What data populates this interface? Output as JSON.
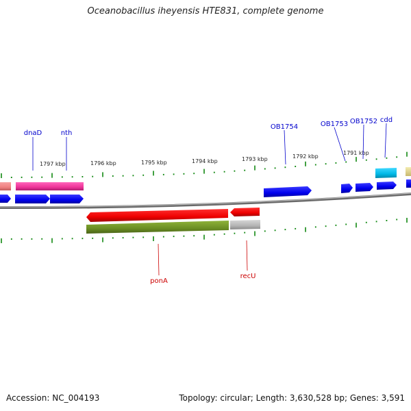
{
  "title": "Oceanobacillus iheyensis HTE831, complete genome",
  "footer": {
    "accession": "Accession: NC_004193",
    "topology": "Topology: circular; Length: 3,630,528 bp; Genes: 3,591"
  },
  "colors": {
    "forward_gene": "#0000ee",
    "reverse_gene": "#ee0000",
    "magenta_gene": "#ee3399",
    "salmon_gene": "#f08080",
    "olive_gene": "#6b8e23",
    "gray_gene": "#b4b4b4",
    "cyan_gene": "#00b8e6",
    "tan_gene": "#e8d890",
    "tick": "#118811",
    "backbone": "#808080",
    "label_forward": "#0000cc",
    "label_reverse": "#cc0000"
  },
  "scale_labels": [
    "1797 kbp",
    "1796 kbp",
    "1795 kbp",
    "1794 kbp",
    "1793 kbp",
    "1792 kbp",
    "1791 kbp"
  ],
  "forward_labels": [
    "dnaD",
    "nth",
    "OB1754",
    "OB1753",
    "OB1752",
    "cdd"
  ],
  "reverse_labels": [
    "ponA",
    "recU"
  ]
}
